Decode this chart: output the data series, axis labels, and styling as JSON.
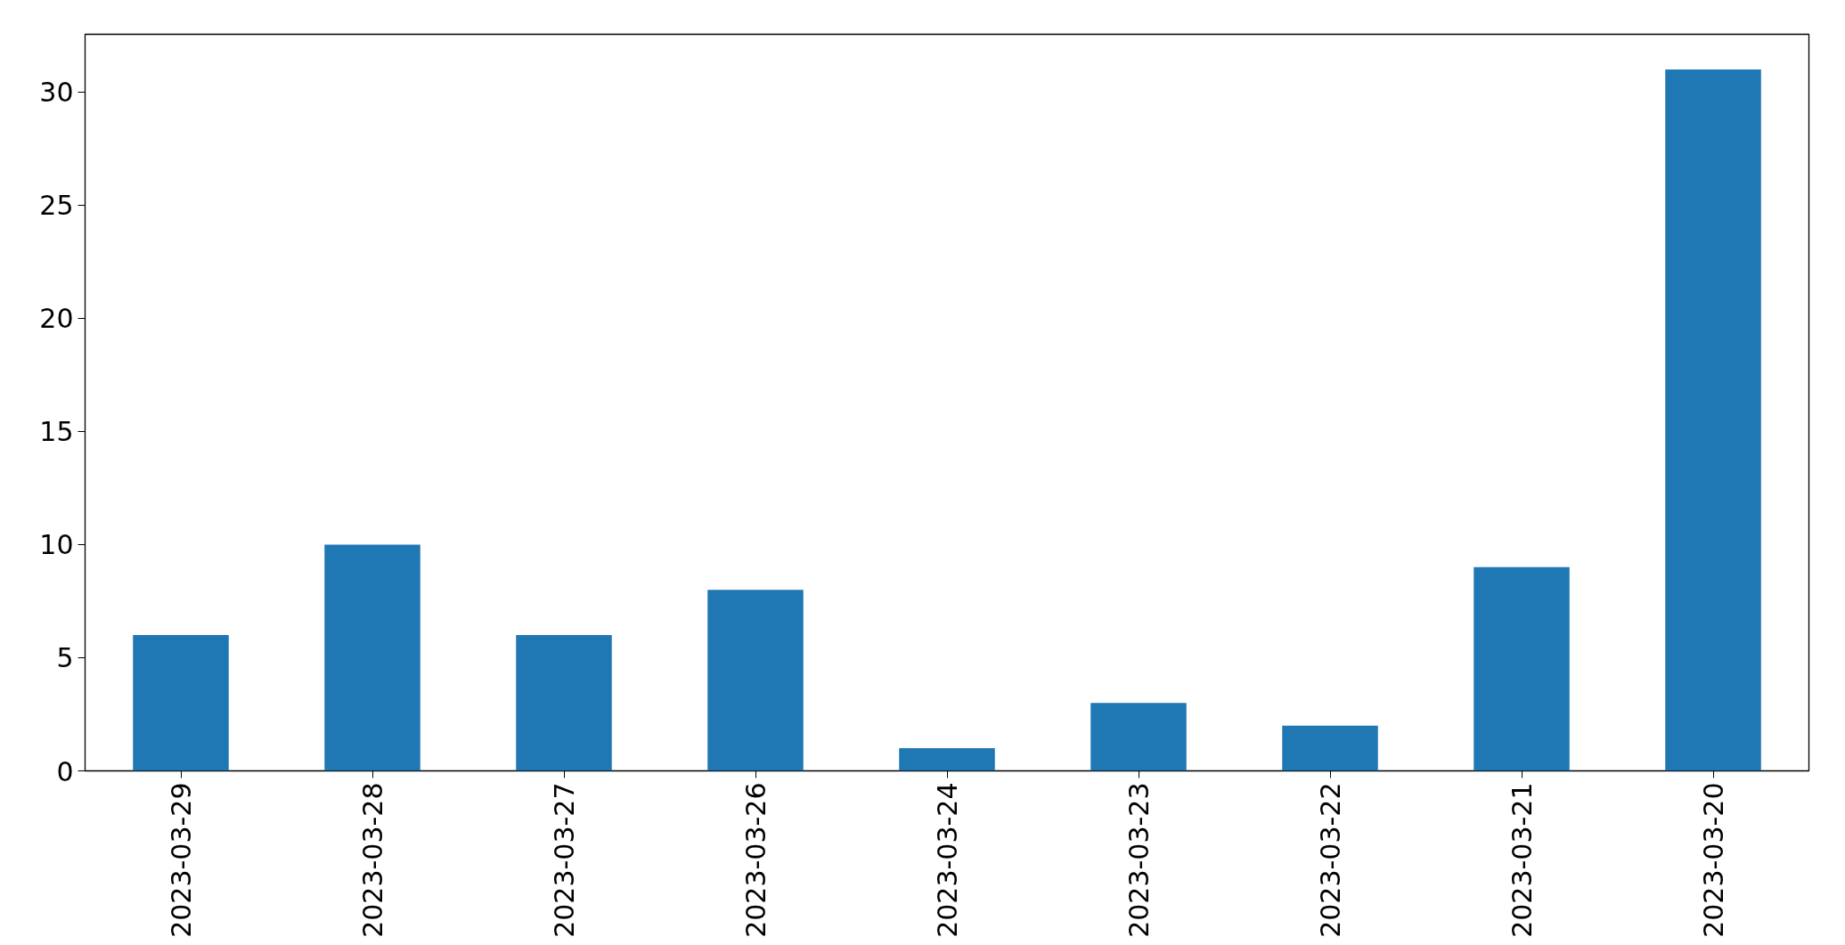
{
  "chart_data": {
    "type": "bar",
    "categories": [
      "2023-03-29",
      "2023-03-28",
      "2023-03-27",
      "2023-03-26",
      "2023-03-24",
      "2023-03-23",
      "2023-03-22",
      "2023-03-21",
      "2023-03-20"
    ],
    "values": [
      6,
      10,
      6,
      8,
      1,
      3,
      2,
      9,
      31
    ],
    "color": "#1f77b4",
    "ylim": [
      0,
      32.55
    ],
    "yticks": [
      0,
      5,
      10,
      15,
      20,
      25,
      30
    ],
    "grid": false
  }
}
